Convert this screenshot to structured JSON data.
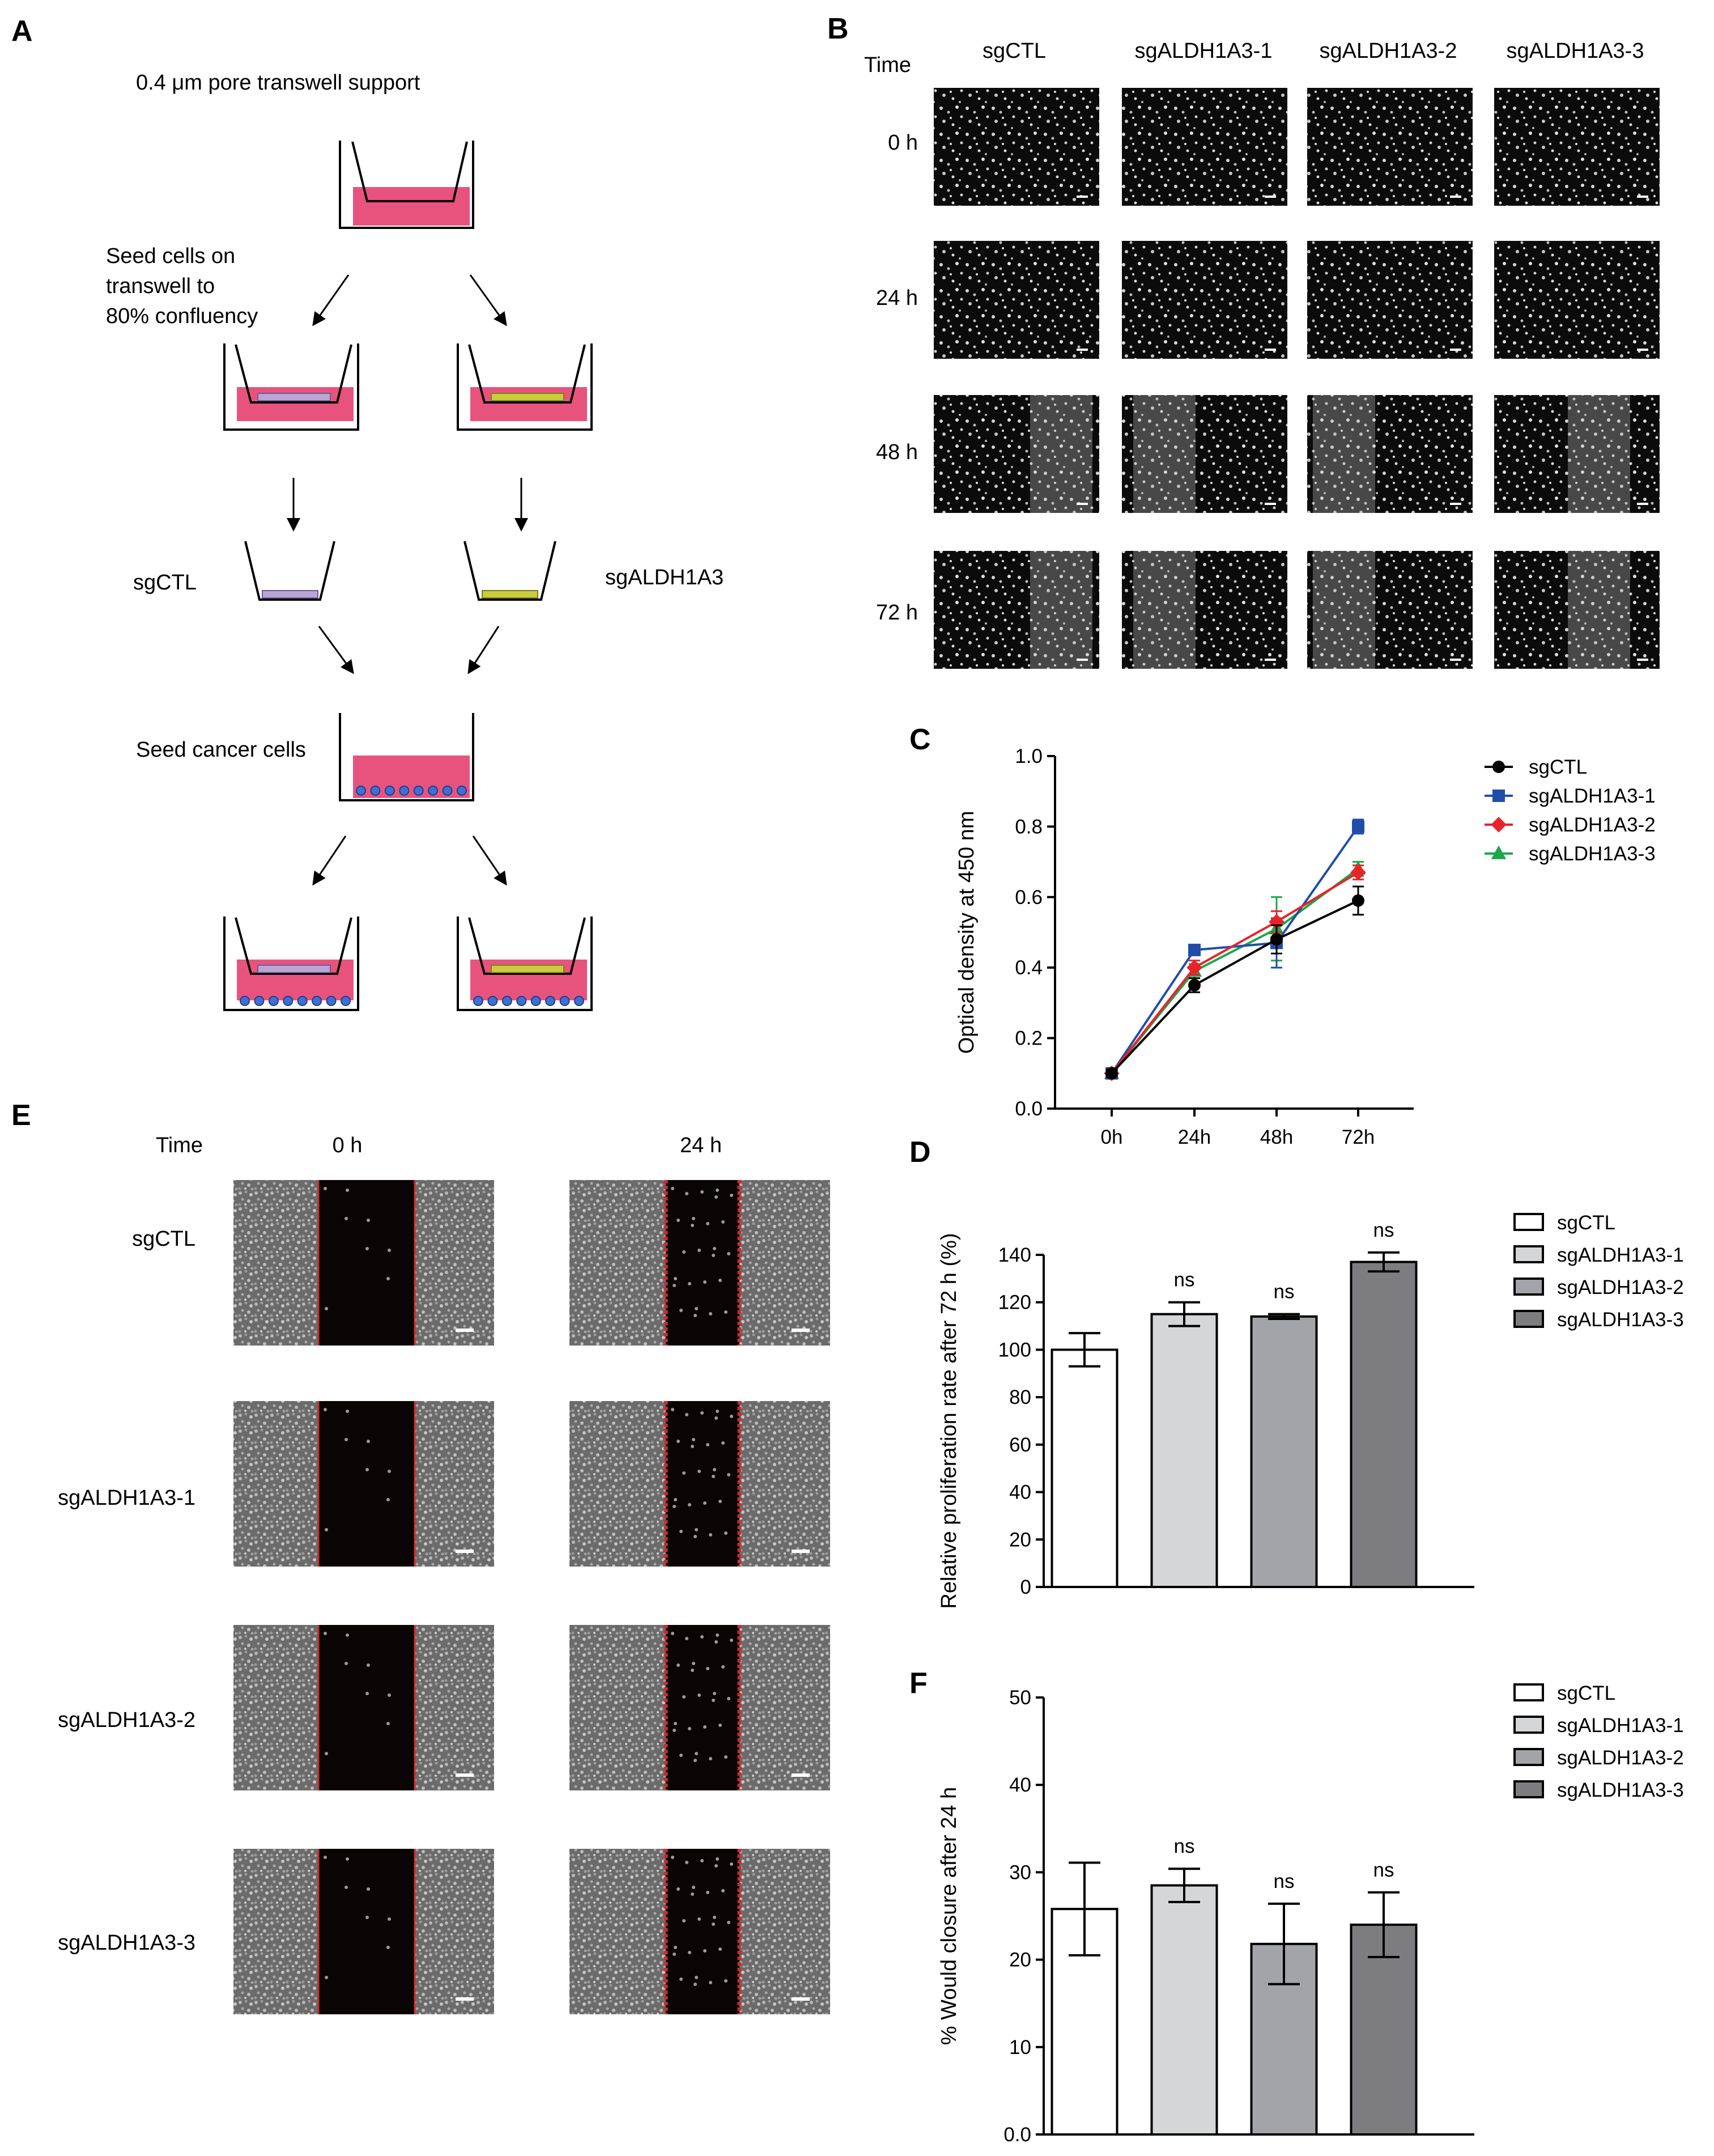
{
  "panel_a": {
    "label": "A",
    "title": "0.4 μm pore transwell support",
    "seed_text": [
      "Seed cells on",
      "transwell to",
      "80% confluency"
    ],
    "left_insert": "sgCTL",
    "right_insert": "sgALDH1A3",
    "seed_cancer": "Seed cancer cells",
    "colors": {
      "medium": "#e8537e",
      "control_cells": "#b9a6d4",
      "knockout_cells": "#c9cc3c",
      "cancer_cells": "#3f6fd1"
    }
  },
  "panel_b": {
    "label": "B",
    "time_header": "Time",
    "columns": [
      "sgCTL",
      "sgALDH1A3-1",
      "sgALDH1A3-2",
      "sgALDH1A3-3"
    ],
    "rows": [
      "0 h",
      "24 h",
      "48 h",
      "72 h"
    ]
  },
  "panel_e": {
    "label": "E",
    "time_header": "Time",
    "columns": [
      "0 h",
      "24 h"
    ],
    "rows": [
      "sgCTL",
      "sgALDH1A3-1",
      "sgALDH1A3-2",
      "sgALDH1A3-3"
    ]
  },
  "chart_data": [
    {
      "panel": "C",
      "type": "line",
      "x": [
        "0h",
        "24h",
        "48h",
        "72h"
      ],
      "ylabel": "Optical density at 450 nm",
      "ylim": [
        0,
        1.0
      ],
      "yticks": [
        "0.0",
        "0.2",
        "0.4",
        "0.6",
        "0.8",
        "1.0"
      ],
      "legend_position": "top-right",
      "series": [
        {
          "name": "sgCTL",
          "color": "#000000",
          "marker": "circle",
          "values": [
            0.1,
            0.35,
            0.48,
            0.59
          ],
          "errors": [
            0.01,
            0.02,
            0.04,
            0.04
          ]
        },
        {
          "name": "sgALDH1A3-1",
          "color": "#1f4ea8",
          "marker": "square",
          "values": [
            0.1,
            0.45,
            0.47,
            0.8
          ],
          "errors": [
            0.01,
            0.01,
            0.07,
            0.02
          ]
        },
        {
          "name": "sgALDH1A3-2",
          "color": "#e8232a",
          "marker": "diamond",
          "values": [
            0.1,
            0.4,
            0.53,
            0.67
          ],
          "errors": [
            0.01,
            0.02,
            0.03,
            0.02
          ]
        },
        {
          "name": "sgALDH1A3-3",
          "color": "#1aa84a",
          "marker": "triangle",
          "values": [
            0.1,
            0.39,
            0.51,
            0.68
          ],
          "errors": [
            0.01,
            0.02,
            0.09,
            0.02
          ]
        }
      ]
    },
    {
      "panel": "D",
      "type": "bar",
      "categories": [
        "sgCTL",
        "sgALDH1A3-1",
        "sgALDH1A3-2",
        "sgALDH1A3-3"
      ],
      "values": [
        100,
        115,
        114,
        137
      ],
      "errors": [
        7,
        5,
        1,
        4
      ],
      "annotations": [
        "",
        "ns",
        "ns",
        "ns"
      ],
      "colors": [
        "#ffffff",
        "#d4d6d8",
        "#a3a4a9",
        "#7d7d7f"
      ],
      "ylabel": "Relative proliferation rate after 72 h (%)",
      "ylim": [
        0,
        140
      ],
      "yticks": [
        "0",
        "20",
        "40",
        "60",
        "80",
        "100",
        "120",
        "140"
      ],
      "legend_position": "top-right"
    },
    {
      "panel": "F",
      "type": "bar",
      "categories": [
        "sgCTL",
        "sgALDH1A3-1",
        "sgALDH1A3-2",
        "sgALDH1A3-3"
      ],
      "values": [
        25.8,
        28.5,
        21.8,
        24.0
      ],
      "errors": [
        5.3,
        1.9,
        4.6,
        3.7
      ],
      "annotations": [
        "",
        "ns",
        "ns",
        "ns"
      ],
      "colors": [
        "#ffffff",
        "#d4d6d8",
        "#a3a4a9",
        "#7d7d7f"
      ],
      "ylabel": "% Would closure after 24 h",
      "ylim": [
        0,
        50
      ],
      "yticks": [
        "0.0",
        "10",
        "20",
        "30",
        "40",
        "50"
      ],
      "legend_position": "top-right"
    }
  ]
}
